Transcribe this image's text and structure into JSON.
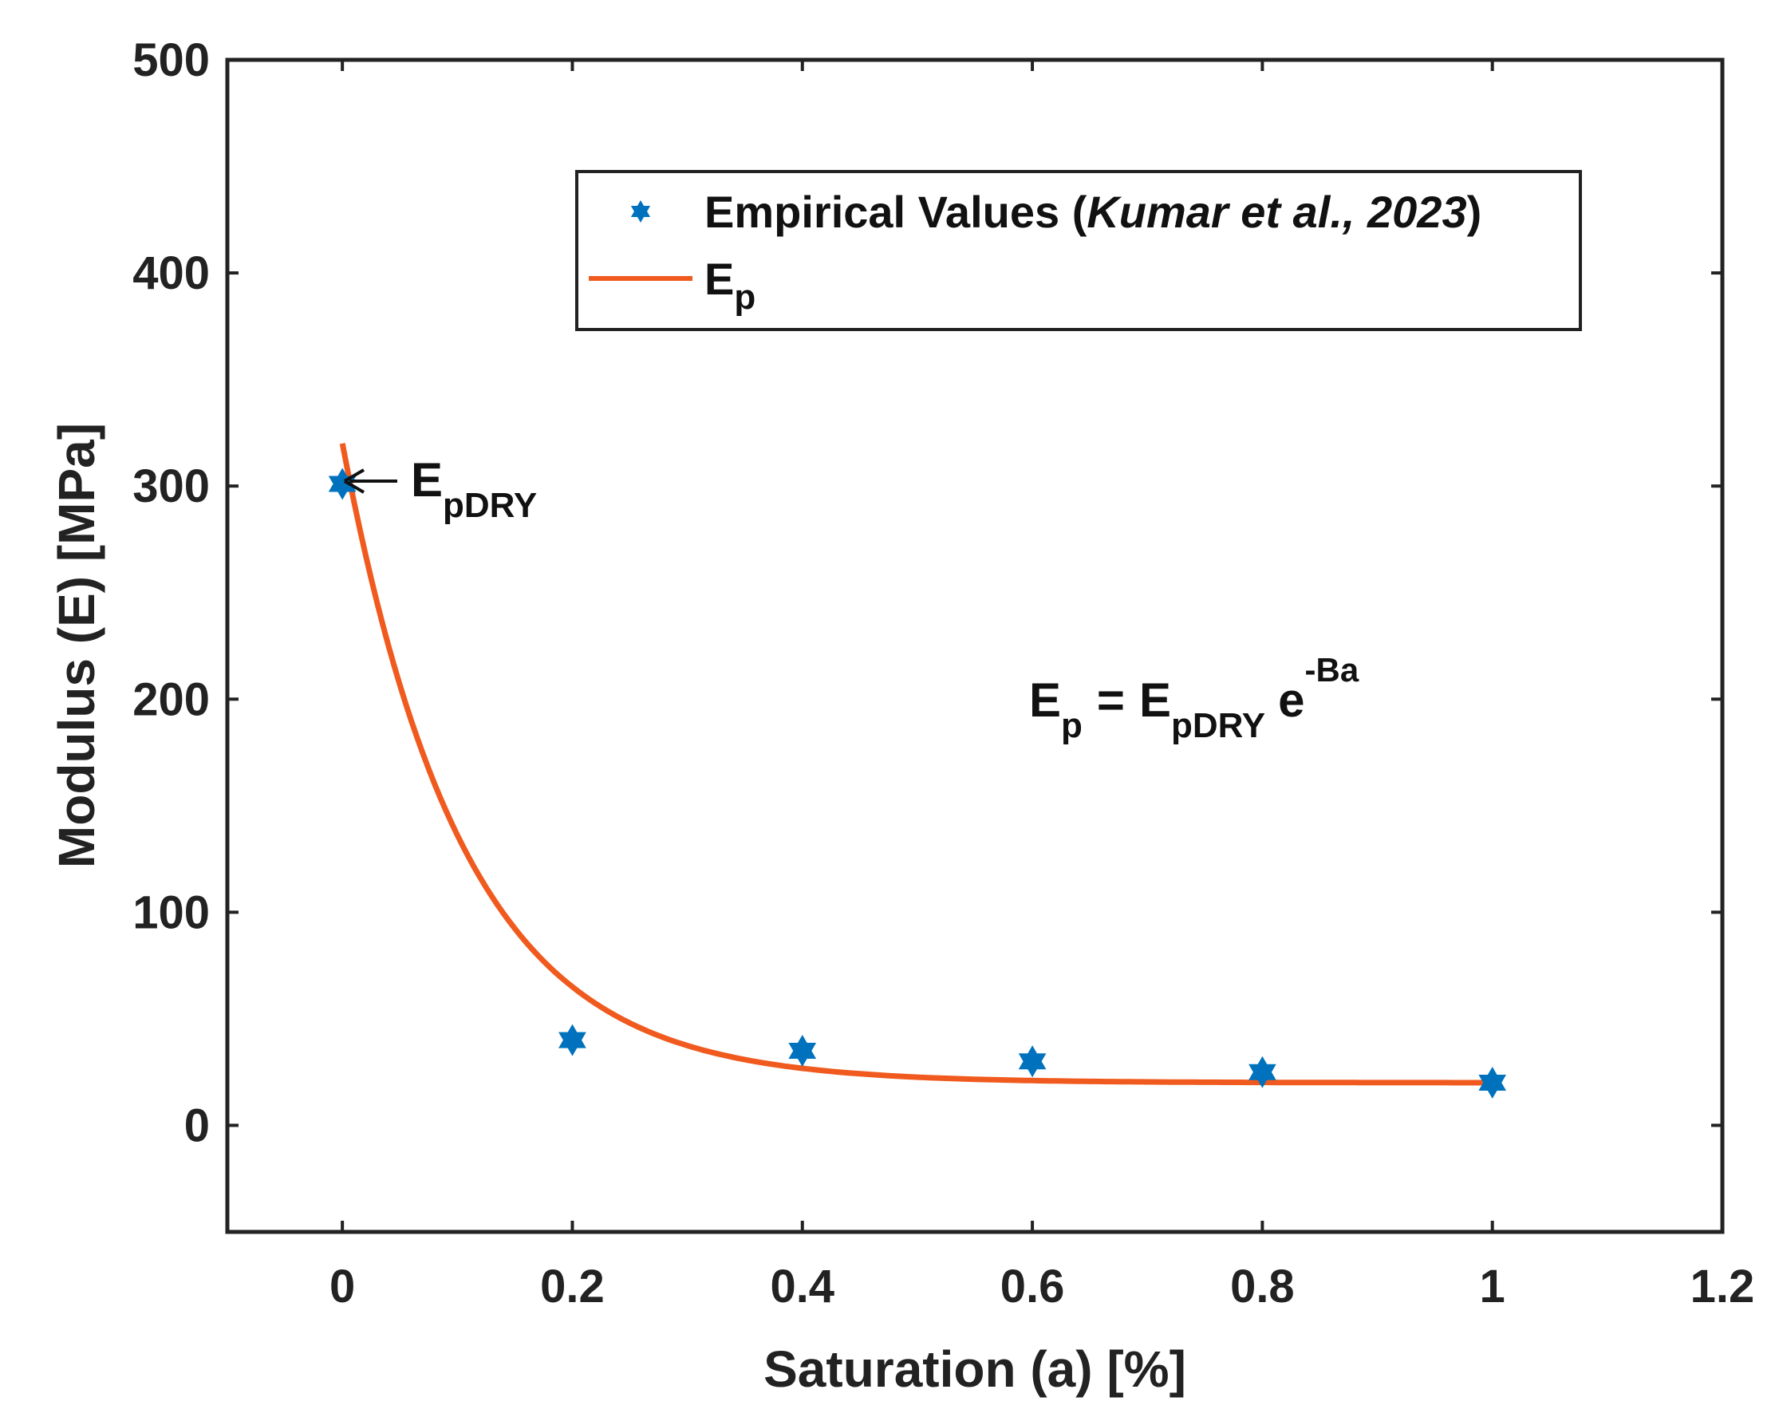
{
  "chart_data": {
    "type": "scatter",
    "title": "",
    "xlabel": "Saturation (a) [%]",
    "ylabel": "Modulus (E) [MPa]",
    "xlim": [
      -0.1,
      1.2
    ],
    "ylim": [
      -50,
      500
    ],
    "xticks": [
      0,
      0.2,
      0.4,
      0.6,
      0.8,
      1,
      1.2
    ],
    "xtick_labels": [
      "0",
      "0.2",
      "0.4",
      "0.6",
      "0.8",
      "1",
      "1.2"
    ],
    "yticks": [
      0,
      100,
      200,
      300,
      400,
      500
    ],
    "ytick_labels": [
      "0",
      "100",
      "200",
      "300",
      "400",
      "500"
    ],
    "grid": false,
    "legend_position": "top-right",
    "series": [
      {
        "name": "Empirical Values (Kumar et al., 2023)",
        "kind": "scatter",
        "marker": "hexagram",
        "color": "#0072BD",
        "x": [
          0,
          0.2,
          0.4,
          0.6,
          0.8,
          1.0
        ],
        "y": [
          301,
          40,
          35,
          30,
          25,
          20
        ]
      },
      {
        "name": "E_p",
        "kind": "line",
        "color": "#F05A1E",
        "model": "exponential decay",
        "x_start": 0,
        "x_end": 1.0,
        "x": [
          0,
          0.05,
          0.1,
          0.15,
          0.2,
          0.25,
          0.3,
          0.35,
          0.4,
          0.45,
          0.5,
          0.6,
          0.7,
          0.8,
          0.9,
          1.0
        ],
        "y": [
          320,
          206,
          135,
          92,
          65,
          48,
          38,
          32,
          27,
          25,
          23,
          21,
          20.5,
          20.2,
          20.1,
          20
        ]
      }
    ],
    "legend": {
      "entry1_prefix": "Empirical Values (",
      "entry1_italic": "Kumar et al., 2023",
      "entry1_suffix": ")",
      "entry2_main": "E",
      "entry2_sub": "p"
    },
    "annotations": {
      "arrow_label_main": "E",
      "arrow_label_sub": "pDRY",
      "arrow_target_x": 0,
      "arrow_target_y": 301,
      "equation": {
        "lhs_main": "E",
        "lhs_sub": "p",
        "equals": "=",
        "rhs_main": "E",
        "rhs_sub": "pDRY",
        "exp_base": "e",
        "exp_sup": "-Ba"
      }
    }
  }
}
